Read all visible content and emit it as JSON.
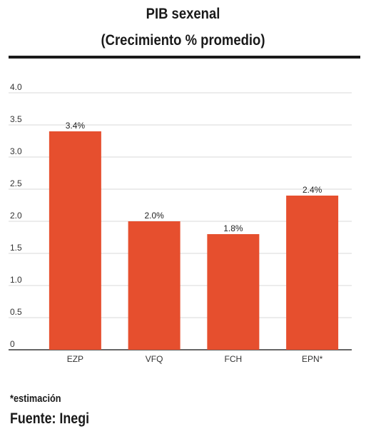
{
  "chart_data": {
    "type": "bar",
    "title": "PIB sexenal",
    "subtitle": "(Crecimiento % promedio)",
    "categories": [
      "EZP",
      "VFQ",
      "FCH",
      "EPN*"
    ],
    "values": [
      3.4,
      2.0,
      1.8,
      2.4
    ],
    "data_labels": [
      "3.4%",
      "2.0%",
      "1.8%",
      "2.4%"
    ],
    "yticks": [
      "0",
      "0.5",
      "1.0",
      "1.5",
      "2.0",
      "2.5",
      "3.0",
      "3.5",
      "4.0"
    ],
    "ylim": [
      0,
      4
    ],
    "grid": true,
    "bar_color": "#e64f2e"
  },
  "footer": {
    "note": "*estimación",
    "source": "Fuente: Inegi"
  }
}
